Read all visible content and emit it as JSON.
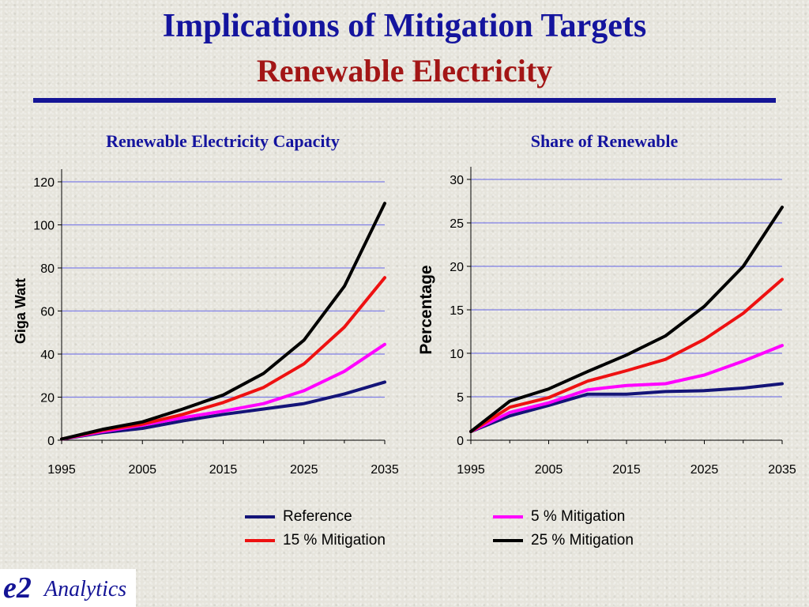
{
  "header": {
    "title": "Implications of Mitigation Targets",
    "subtitle": "Renewable Electricity"
  },
  "logo": {
    "mark": "e2",
    "text": "Analytics"
  },
  "legend": {
    "items": [
      {
        "label": "Reference",
        "color": "#141478"
      },
      {
        "label": "5 % Mitigation",
        "color": "#ff00ff"
      },
      {
        "label": "15 % Mitigation",
        "color": "#ee1111"
      },
      {
        "label": "25 % Mitigation",
        "color": "#000000"
      }
    ]
  },
  "chart_data": [
    {
      "type": "line",
      "title": "Renewable Electricity Capacity",
      "xlabel": "",
      "ylabel": "Giga Watt",
      "x": [
        1995,
        2000,
        2005,
        2010,
        2015,
        2020,
        2025,
        2030,
        2035
      ],
      "xticks": [
        1995,
        2005,
        2015,
        2025,
        2035
      ],
      "yticks": [
        0,
        20,
        40,
        60,
        80,
        100,
        120
      ],
      "xlim": [
        1995,
        2035
      ],
      "ylim": [
        0,
        120
      ],
      "grid": true,
      "series": [
        {
          "name": "Reference",
          "color": "#141478",
          "values": [
            0.5,
            3.5,
            5.5,
            9,
            12,
            14.5,
            17,
            21.5,
            27
          ]
        },
        {
          "name": "5 % Mitigation",
          "color": "#ff00ff",
          "values": [
            0.5,
            4,
            7,
            10.5,
            13.5,
            17,
            23,
            32,
            44.5
          ]
        },
        {
          "name": "15 % Mitigation",
          "color": "#ee1111",
          "values": [
            0.5,
            4.5,
            7.5,
            12,
            17.5,
            24.5,
            35.5,
            52.5,
            75.5
          ]
        },
        {
          "name": "25 % Mitigation",
          "color": "#000000",
          "values": [
            0.5,
            5,
            8.5,
            14.5,
            21,
            31,
            46.5,
            71.5,
            110
          ]
        }
      ]
    },
    {
      "type": "line",
      "title": "Share of Renewable",
      "xlabel": "",
      "ylabel": "Percentage",
      "x": [
        1995,
        2000,
        2005,
        2010,
        2015,
        2020,
        2025,
        2030,
        2035
      ],
      "xticks": [
        1995,
        2005,
        2015,
        2025,
        2035
      ],
      "yticks": [
        0,
        5,
        10,
        15,
        20,
        25,
        30
      ],
      "xlim": [
        1995,
        2035
      ],
      "ylim": [
        0,
        30
      ],
      "grid": true,
      "series": [
        {
          "name": "Reference",
          "color": "#141478",
          "values": [
            1,
            2.8,
            4,
            5.3,
            5.3,
            5.6,
            5.7,
            6,
            6.5
          ]
        },
        {
          "name": "5 % Mitigation",
          "color": "#ff00ff",
          "values": [
            1,
            3.2,
            4.3,
            5.8,
            6.3,
            6.5,
            7.5,
            9.1,
            10.9
          ]
        },
        {
          "name": "15 % Mitigation",
          "color": "#ee1111",
          "values": [
            1,
            3.8,
            4.9,
            6.8,
            8,
            9.3,
            11.6,
            14.6,
            18.5
          ]
        },
        {
          "name": "25 % Mitigation",
          "color": "#000000",
          "values": [
            1,
            4.5,
            5.9,
            7.9,
            9.8,
            12,
            15.4,
            20,
            26.8
          ]
        }
      ]
    }
  ]
}
